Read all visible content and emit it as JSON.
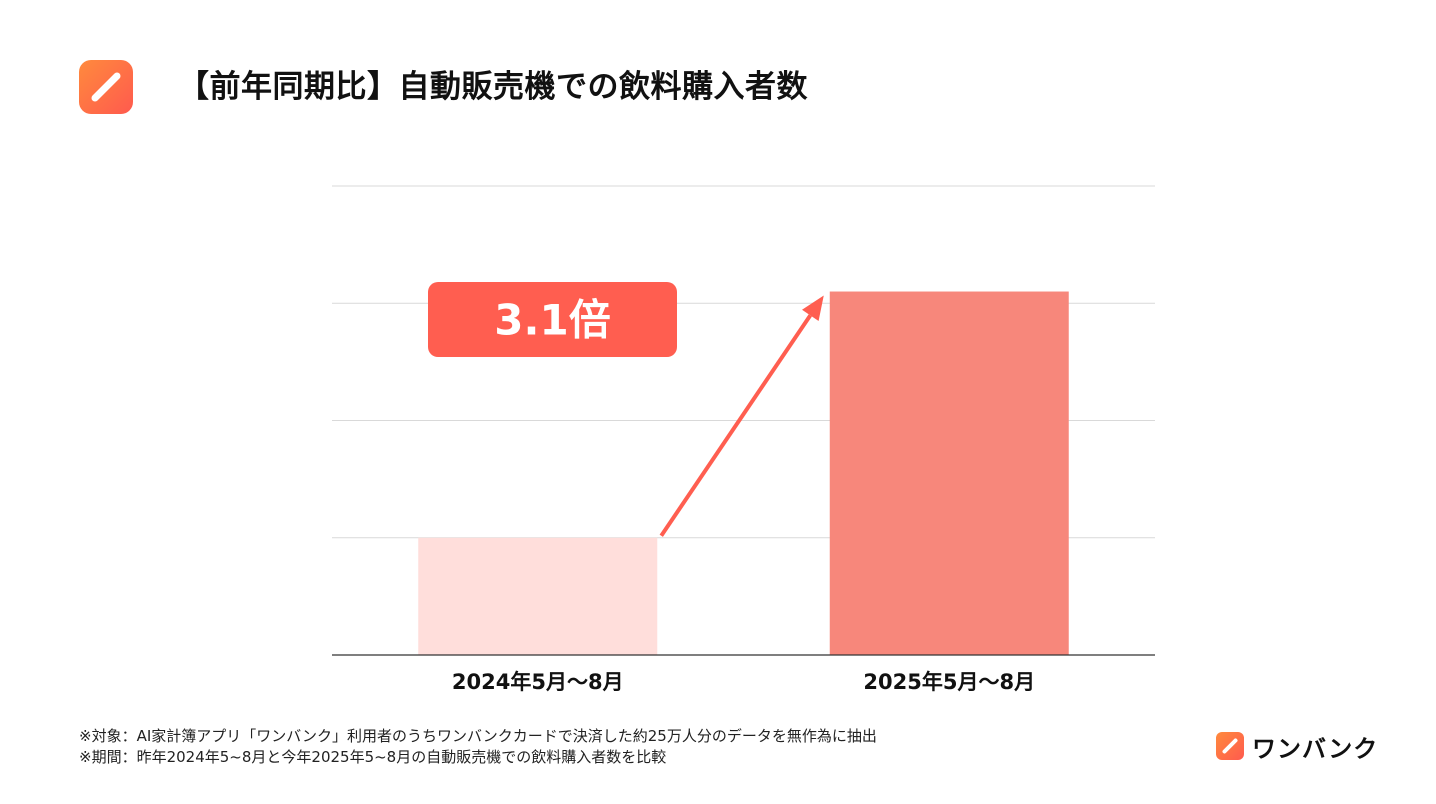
{
  "header": {
    "title": "【前年同期比】自動販売機での飲料購入者数",
    "icon": "pencil-icon",
    "brand_color": "#ff5a4e"
  },
  "chart_data": {
    "type": "bar",
    "title": "【前年同期比】自動販売機での飲料購入者数",
    "categories": [
      "2024年5月〜8月",
      "2025年5月〜8月"
    ],
    "values": [
      1,
      3.1
    ],
    "ylim": [
      0,
      4
    ],
    "grid": true,
    "bar_colors": [
      "#ffdedb",
      "#f7877b"
    ],
    "annotation": {
      "text": "3.1倍",
      "color": "#ff5e50",
      "type": "arrow-up-right"
    }
  },
  "footnotes": [
    "※対象：AI家計簿アプリ「ワンバンク」利用者のうちワンバンクカードで決済した約25万人分のデータを無作為に抽出",
    "※期間：昨年2024年5~8月と今年2025年5~8月の自動販売機での飲料購入者数を比較"
  ],
  "brand": {
    "name": "ワンバンク",
    "icon": "pencil-icon"
  }
}
